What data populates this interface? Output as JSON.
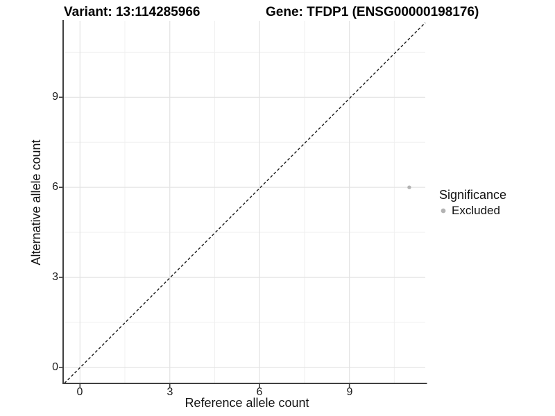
{
  "header": {
    "title_left": "Variant: 13:114285966",
    "title_right": "Gene: TFDP1 (ENSG00000198176)"
  },
  "axes": {
    "x": {
      "label": "Reference allele count",
      "ticks": [
        "0",
        "3",
        "6",
        "9"
      ]
    },
    "y": {
      "label": "Alternative allele count",
      "ticks": [
        "0",
        "3",
        "6",
        "9"
      ]
    }
  },
  "legend": {
    "title": "Significance",
    "items": [
      {
        "label": "Excluded",
        "color": "#b3b3b3"
      }
    ]
  },
  "colors": {
    "background": "#ffffff",
    "axis_line": "#404040",
    "major_grid": "#e3e3e3",
    "minor_grid": "#f0f0f0",
    "reference_line": "#1a1a1a",
    "excluded_point": "#b3b3b3"
  },
  "chart_data": {
    "type": "scatter",
    "title": "Variant: 13:114285966   |   Gene: TFDP1 (ENSG00000198176)",
    "xlabel": "Reference allele count",
    "ylabel": "Alternative allele count",
    "xlim": [
      -0.55,
      11.55
    ],
    "ylim": [
      -0.55,
      11.55
    ],
    "xticks": [
      0,
      3,
      6,
      9
    ],
    "yticks": [
      0,
      3,
      6,
      9
    ],
    "minor_ticks": [
      1.5,
      4.5,
      7.5,
      10.5
    ],
    "grid": "major+minor",
    "legend_position": "right",
    "legend_title": "Significance",
    "reference_line": {
      "type": "identity",
      "equation": "y = x",
      "style": "dashed",
      "color": "#1a1a1a"
    },
    "series": [
      {
        "name": "Excluded",
        "marker": "circle",
        "color": "#b3b3b3",
        "points": [
          {
            "x": 11,
            "y": 6
          }
        ]
      }
    ]
  }
}
